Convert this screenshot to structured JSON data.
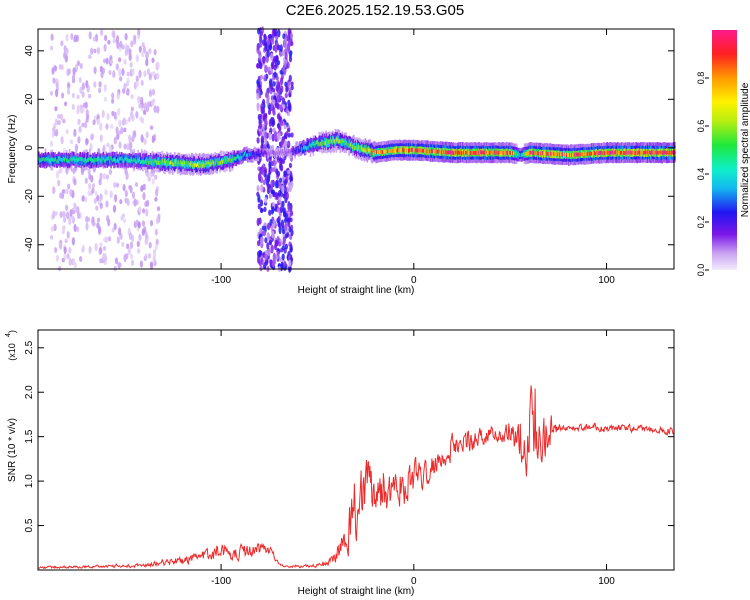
{
  "title": "C2E6.2025.152.19.53.G05",
  "colors": {
    "snr_line": "#ee2b2b",
    "frame": "#000000"
  },
  "chart_data": [
    {
      "type": "heatmap",
      "xlabel": "Height of straight line (km)",
      "ylabel": "Frequency (Hz)",
      "xlim": [
        -195,
        135
      ],
      "ylim": [
        -50,
        49
      ],
      "x_ticks": [
        -100,
        0,
        100
      ],
      "x_tick_labels": [
        "-100",
        "0",
        "100"
      ],
      "y_ticks": [
        -40,
        -20,
        0,
        20,
        40
      ],
      "y_tick_labels": [
        "-40",
        "-20",
        "0",
        "20",
        "40"
      ],
      "colorbar": {
        "label": "Normalized spectral amplitude",
        "range": [
          0,
          1
        ],
        "ticks": [
          0.0,
          0.2,
          0.4,
          0.6,
          0.8
        ],
        "tick_labels": [
          "0.0",
          "0.2",
          "0.4",
          "0.6",
          "0.8"
        ]
      },
      "ridge": {
        "x": [
          -195,
          -170,
          -150,
          -130,
          -110,
          -95,
          -88,
          -75,
          -65,
          -58,
          -50,
          -40,
          -35,
          -30,
          -25,
          -20,
          -10,
          0,
          20,
          50,
          55,
          60,
          80,
          100,
          135
        ],
        "frequency": [
          -5,
          -5,
          -5,
          -6,
          -7,
          -5,
          -3,
          -2,
          -2,
          0,
          2,
          3,
          2,
          0,
          -1,
          -2,
          -1,
          -1,
          -2,
          -2,
          -3,
          -2,
          -3,
          -2,
          -2
        ],
        "amplitude": [
          0.45,
          0.45,
          0.4,
          0.55,
          0.6,
          0.5,
          0.35,
          0.1,
          0.1,
          0.35,
          0.5,
          0.6,
          0.5,
          0.55,
          0.7,
          0.75,
          0.8,
          0.85,
          0.9,
          0.85,
          0.3,
          0.9,
          0.8,
          0.9,
          0.95
        ]
      },
      "noise_bands": [
        {
          "x_range": [
            -188,
            -132
          ],
          "amplitude": 0.05
        },
        {
          "x_range": [
            -81,
            -63
          ],
          "amplitude": 0.15
        }
      ]
    },
    {
      "type": "line",
      "xlabel": "Height of straight line (km)",
      "ylabel": "SNR (10 * v/v)",
      "y_scale_label": "(x10",
      "y_scale_exp": "4",
      "xlim": [
        -195,
        135
      ],
      "ylim": [
        0,
        2.7
      ],
      "x_ticks": [
        -100,
        0,
        100
      ],
      "x_tick_labels": [
        "-100",
        "0",
        "100"
      ],
      "y_ticks": [
        0.5,
        1.0,
        1.5,
        2.0,
        2.5
      ],
      "y_tick_labels": [
        "0.5",
        "1.0",
        "1.5",
        "2.0",
        "2.5"
      ],
      "series": [
        {
          "x": [
            -195,
            -180,
            -160,
            -140,
            -130,
            -120,
            -110,
            -100,
            -90,
            -80,
            -75,
            -70,
            -60,
            -50,
            -45,
            -40,
            -35,
            -30,
            -25,
            -20,
            -15,
            -10,
            -5,
            0,
            5,
            10,
            20,
            30,
            40,
            50,
            55,
            60,
            65,
            70,
            75,
            80,
            90,
            100,
            110,
            120,
            135
          ],
          "snr": [
            0.03,
            0.03,
            0.04,
            0.05,
            0.08,
            0.1,
            0.15,
            0.2,
            0.2,
            0.22,
            0.25,
            0.05,
            0.04,
            0.05,
            0.08,
            0.15,
            0.3,
            0.6,
            0.95,
            0.95,
            0.9,
            1.0,
            0.95,
            1.05,
            1.1,
            1.2,
            1.35,
            1.45,
            1.5,
            1.55,
            1.55,
            1.6,
            1.5,
            1.6,
            1.6,
            1.6,
            1.6,
            1.58,
            1.6,
            1.58,
            1.55
          ],
          "jitter": [
            0.02,
            0.02,
            0.02,
            0.03,
            0.05,
            0.06,
            0.09,
            0.12,
            0.12,
            0.12,
            0.1,
            0.02,
            0.02,
            0.03,
            0.05,
            0.12,
            0.25,
            0.45,
            0.5,
            0.5,
            0.4,
            0.35,
            0.3,
            0.3,
            0.25,
            0.2,
            0.18,
            0.16,
            0.12,
            0.15,
            0.5,
            0.7,
            0.6,
            0.35,
            0.05,
            0.05,
            0.05,
            0.06,
            0.06,
            0.05,
            0.05
          ]
        }
      ]
    }
  ]
}
